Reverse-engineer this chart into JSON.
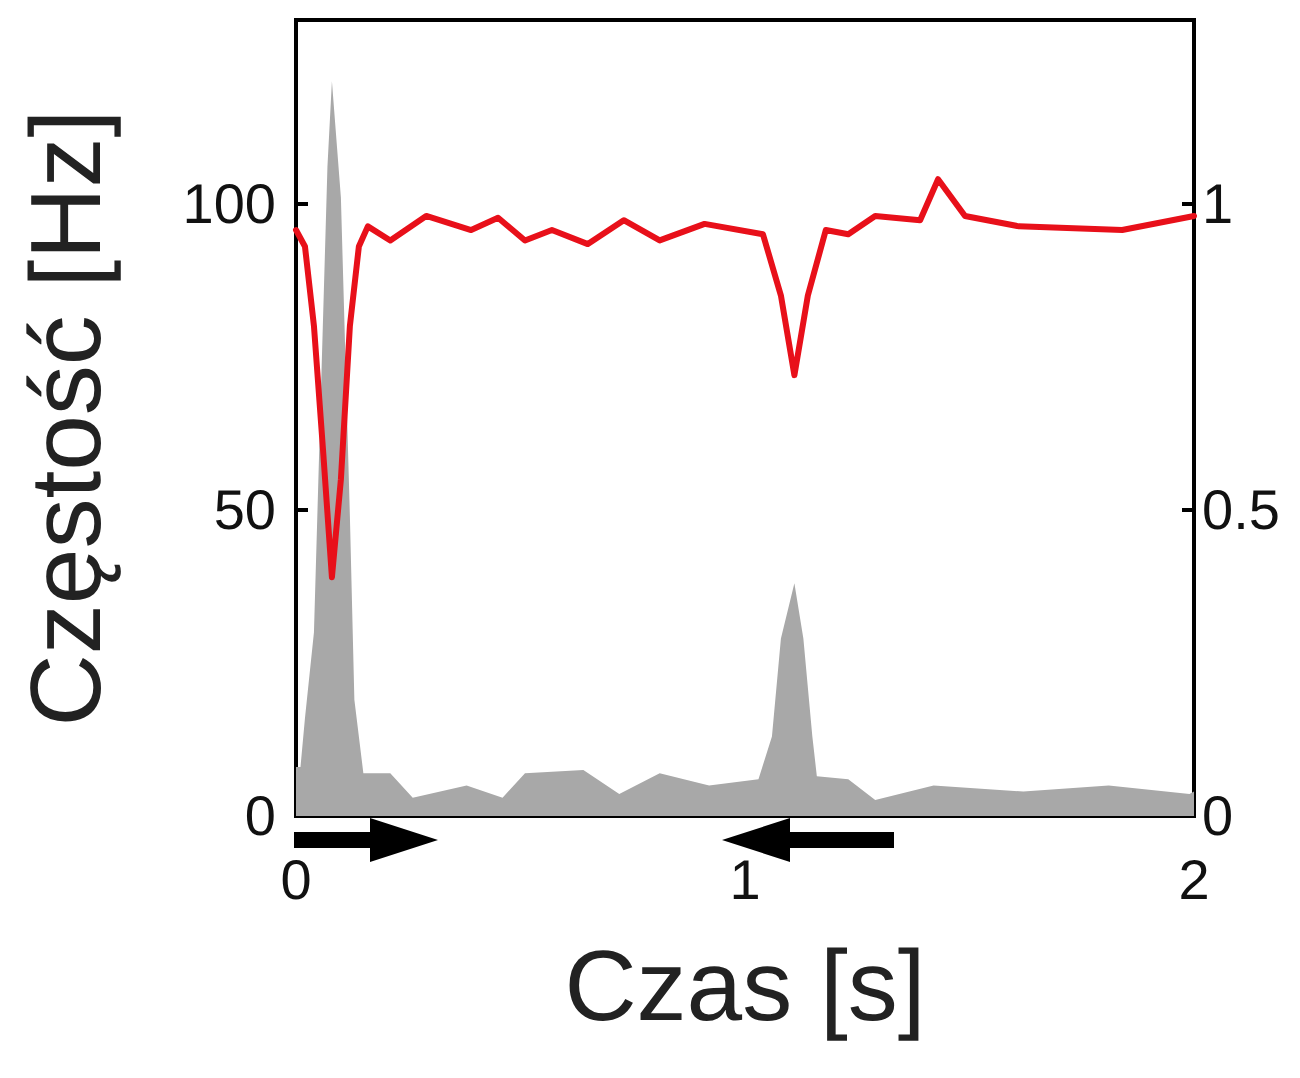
{
  "chart_data": {
    "type": "area",
    "xlabel": "Czas [s]",
    "ylabel": "Częstość [Hz]",
    "xlim": [
      0,
      2
    ],
    "xticks": [
      0,
      1,
      2
    ],
    "ylim": [
      0,
      130
    ],
    "yticks": [
      0,
      50,
      100
    ],
    "y2lim": [
      0,
      1.3
    ],
    "y2ticks": [
      0,
      0.5,
      1
    ],
    "grid": false,
    "marker": "none",
    "line_style": "solid",
    "series": [
      {
        "color": "#a8a8a8",
        "x": [
          0,
          0.01,
          0.02,
          0.04,
          0.07,
          0.08,
          0.1,
          0.12,
          0.13,
          0.15,
          0.21,
          0.26,
          0.38,
          0.46,
          0.51,
          0.64,
          0.72,
          0.81,
          0.92,
          1.03,
          1.06,
          1.08,
          1.11,
          1.13,
          1.15,
          1.16,
          1.23,
          1.29,
          1.42,
          1.62,
          1.81,
          1.99,
          2
        ],
        "values": [
          8,
          8,
          16,
          30,
          106,
          120,
          101,
          49,
          19,
          7,
          7,
          3,
          5,
          3,
          7,
          7.5,
          3.6,
          7,
          5,
          6,
          13,
          29,
          38,
          29,
          13,
          6.5,
          6,
          2.6,
          5,
          4,
          5,
          3.6,
          4
        ]
      },
      {
        "type": "line",
        "axis": "y2",
        "color": "#e8101a",
        "x": [
          0,
          0.02,
          0.04,
          0.06,
          0.08,
          0.1,
          0.12,
          0.14,
          0.16,
          0.21,
          0.29,
          0.39,
          0.45,
          0.51,
          0.57,
          0.65,
          0.73,
          0.81,
          0.91,
          1.04,
          1.08,
          1.11,
          1.14,
          1.18,
          1.23,
          1.29,
          1.39,
          1.43,
          1.49,
          1.61,
          1.84,
          2
        ],
        "values": [
          0.957,
          0.93,
          0.8,
          0.6,
          0.39,
          0.55,
          0.8,
          0.93,
          0.963,
          0.94,
          0.98,
          0.957,
          0.977,
          0.94,
          0.957,
          0.934,
          0.973,
          0.94,
          0.967,
          0.95,
          0.85,
          0.72,
          0.85,
          0.957,
          0.95,
          0.98,
          0.973,
          1.04,
          0.98,
          0.963,
          0.957,
          0.98
        ]
      }
    ]
  }
}
